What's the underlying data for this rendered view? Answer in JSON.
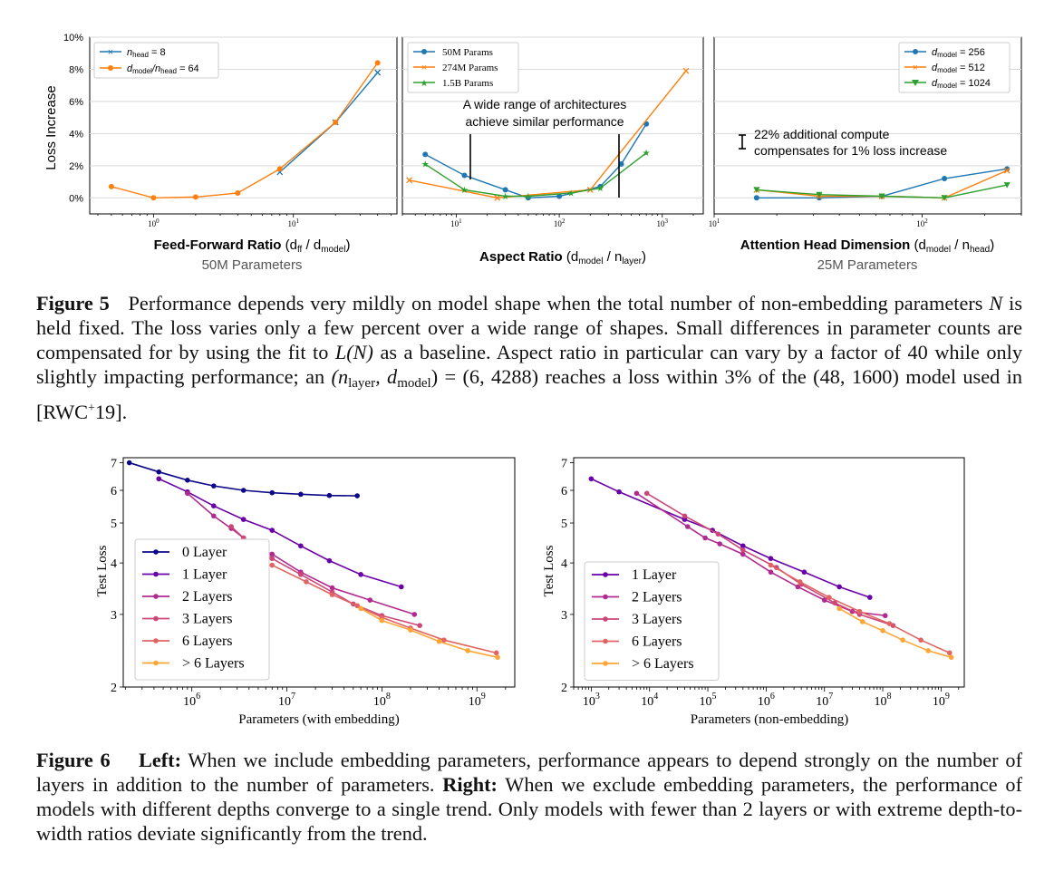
{
  "colors": {
    "blue": "#1f77b4",
    "orange": "#ff7f0e",
    "green": "#2ca02c",
    "depth0": "#0d0887",
    "depth1": "#6a00a8",
    "depth2": "#b12a90",
    "depth3": "#cc4778",
    "depth6": "#e16462",
    "depthMore": "#fca636",
    "grid": "#d9d9d9",
    "axis": "#000000"
  },
  "figure5": {
    "ylabel": "Loss Increase",
    "yticks": [
      "0%",
      "2%",
      "4%",
      "6%",
      "8%",
      "10%"
    ],
    "panel1": {
      "xlabel_bold": "Feed-Forward Ratio",
      "xlabel_rest": "(d",
      "xlabel_sub1": "ff",
      "xlabel_mid": "/ d",
      "xlabel_sub2": "model",
      "xlabel_end": ")",
      "subtitle": "50M Parameters",
      "legend": [
        {
          "pre": "n",
          "sub": "head",
          "post": " = 8"
        },
        {
          "pre": "d",
          "sub": "model",
          "mid": "/n",
          "sub2": "head",
          "post": " = 64"
        }
      ]
    },
    "panel2": {
      "xlabel_bold": "Aspect Ratio",
      "xlabel_rest": "(d",
      "xlabel_sub1": "model",
      "xlabel_mid": "/ n",
      "xlabel_sub2": "layer",
      "xlabel_end": ")",
      "legend": [
        "50M Params",
        "274M Params",
        "1.5B Params"
      ],
      "annotation_line1": "A wide range of architectures",
      "annotation_line2": "achieve similar performance"
    },
    "panel3": {
      "xlabel_bold": "Attention Head Dimension",
      "xlabel_rest": "(d",
      "xlabel_sub1": "model",
      "xlabel_mid": "/ n",
      "xlabel_sub2": "head",
      "xlabel_end": ")",
      "subtitle": "25M Parameters",
      "legend": [
        {
          "pre": "d",
          "sub": "model",
          "post": " = 256"
        },
        {
          "pre": "d",
          "sub": "model",
          "post": " = 512"
        },
        {
          "pre": "d",
          "sub": "model",
          "post": " = 1024"
        }
      ],
      "annotation_line1": "22% additional compute",
      "annotation_line2": "compensates for 1% loss increase"
    },
    "caption": {
      "label": "Figure 5",
      "text1": "Performance depends very mildly on model shape when the total number of non-embedding parameters ",
      "N": "N",
      "text2": " is held fixed. The loss varies only a few percent over a wide range of shapes. Small differences in parameter counts are compensated for by using the fit to ",
      "LN": "L(N)",
      "text3": " as a baseline. Aspect ratio in particular can vary by a factor of 40 while only slightly impacting performance; an ",
      "tuple1": "(n",
      "tuple1_sub": "layer",
      "tuple1_mid": ", d",
      "tuple1_sub2": "model",
      "tuple1_end": ") = (6, 4288)",
      "text4": " reaches a loss within 3% of the ",
      "tuple2": "(48, 1600)",
      "text5": " model used in [RWC",
      "cite_sup": "+",
      "text6": "19]."
    }
  },
  "figure6": {
    "ylabel": "Test Loss",
    "left_xlabel": "Parameters (with embedding)",
    "right_xlabel": "Parameters (non-embedding)",
    "yticks": [
      "2",
      "3",
      "4",
      "5",
      "6",
      "7"
    ],
    "left_legend": [
      "0 Layer",
      "1 Layer",
      "2 Layers",
      "3 Layers",
      "6 Layers",
      "> 6 Layers"
    ],
    "right_legend": [
      "1 Layer",
      "2 Layers",
      "3 Layers",
      "6 Layers",
      "> 6 Layers"
    ],
    "caption": {
      "label": "Figure 6",
      "left_bold": "Left:",
      "text1": " When we include embedding parameters, performance appears to depend strongly on the number of layers in addition to the number of parameters. ",
      "right_bold": "Right:",
      "text2": " When we exclude embedding parameters, the performance of models with different depths converge to a single trend. Only models with fewer than 2 layers or with extreme depth-to-width ratios deviate significantly from the trend."
    }
  },
  "chart_data": [
    {
      "type": "line",
      "title": "Feed-Forward Ratio (dff / dmodel), 50M Parameters",
      "xscale": "log",
      "xlim": [
        0.35,
        55
      ],
      "ylim": [
        -1,
        10
      ],
      "xticks": [
        1,
        10
      ],
      "ylabel": "Loss Increase (%)",
      "series": [
        {
          "name": "n_head = 8",
          "marker": "x",
          "color": "#1f77b4",
          "x": [
            8,
            20,
            40
          ],
          "y": [
            1.6,
            4.7,
            7.8
          ]
        },
        {
          "name": "d_model/n_head = 64",
          "marker": "o",
          "color": "#ff7f0e",
          "x": [
            0.5,
            1,
            2,
            4,
            8,
            20,
            40
          ],
          "y": [
            0.7,
            0.0,
            0.05,
            0.3,
            1.8,
            4.7,
            8.4
          ]
        }
      ]
    },
    {
      "type": "line",
      "title": "Aspect Ratio (dmodel / nlayer)",
      "xscale": "log",
      "xlim": [
        3,
        2500
      ],
      "ylim": [
        -1,
        10
      ],
      "xticks": [
        10,
        100,
        1000
      ],
      "series": [
        {
          "name": "50M Params",
          "marker": "o",
          "color": "#1f77b4",
          "x": [
            5,
            12,
            30,
            50,
            100,
            250,
            400,
            700
          ],
          "y": [
            2.7,
            1.4,
            0.5,
            0.0,
            0.1,
            0.7,
            2.1,
            4.6
          ]
        },
        {
          "name": "274M Params",
          "marker": "x",
          "color": "#ff7f0e",
          "x": [
            3.5,
            25,
            200,
            1700
          ],
          "y": [
            1.1,
            0.0,
            0.5,
            7.9
          ]
        },
        {
          "name": "1.5B Params",
          "marker": "*",
          "color": "#2ca02c",
          "x": [
            5,
            12,
            30,
            50,
            130,
            250,
            700
          ],
          "y": [
            2.1,
            0.5,
            0.1,
            0.1,
            0.3,
            0.6,
            2.8
          ]
        }
      ]
    },
    {
      "type": "line",
      "title": "Attention Head Dimension (dmodel / nhead), 25M Parameters",
      "xscale": "log",
      "xlim": [
        10,
        300
      ],
      "ylim": [
        -1,
        10
      ],
      "xticks": [
        10,
        100
      ],
      "series": [
        {
          "name": "d_model = 256",
          "marker": "o",
          "color": "#1f77b4",
          "x": [
            16,
            32,
            64,
            128,
            256
          ],
          "y": [
            0.0,
            0.0,
            0.1,
            1.2,
            1.8
          ]
        },
        {
          "name": "d_model = 512",
          "marker": "x",
          "color": "#ff7f0e",
          "x": [
            16,
            32,
            64,
            128,
            256
          ],
          "y": [
            0.5,
            0.1,
            0.1,
            0.0,
            1.7
          ]
        },
        {
          "name": "d_model = 1024",
          "marker": "v",
          "color": "#2ca02c",
          "x": [
            16,
            32,
            64,
            128,
            256
          ],
          "y": [
            0.5,
            0.2,
            0.1,
            0.0,
            0.8
          ]
        }
      ]
    },
    {
      "type": "line",
      "title": "Parameters (with embedding)",
      "xscale": "log",
      "yscale": "log",
      "xlim": [
        190000,
        2500000000
      ],
      "ylim": [
        2,
        7.2
      ],
      "ylabel": "Test Loss",
      "series": [
        {
          "name": "0 Layer",
          "color": "#0d0887",
          "x": [
            220000,
            450000,
            900000,
            1700000,
            3500000,
            7000000,
            14000000,
            28000000,
            55000000
          ],
          "y": [
            7.0,
            6.65,
            6.35,
            6.15,
            6.0,
            5.92,
            5.87,
            5.83,
            5.82
          ]
        },
        {
          "name": "1 Layer",
          "color": "#6a00a8",
          "x": [
            450000,
            900000,
            1700000,
            3500000,
            7000000,
            14000000,
            28000000,
            60000000,
            160000000
          ],
          "y": [
            6.4,
            5.95,
            5.5,
            5.1,
            4.8,
            4.4,
            4.05,
            3.75,
            3.5
          ]
        },
        {
          "name": "2 Layers",
          "color": "#b12a90",
          "x": [
            900000,
            1700000,
            2600000,
            3500000,
            5000000,
            7000000,
            14000000,
            30000000,
            75000000,
            220000000
          ],
          "y": [
            5.9,
            5.2,
            4.85,
            4.6,
            4.35,
            4.2,
            3.8,
            3.48,
            3.25,
            3.0
          ]
        },
        {
          "name": "3 Layers",
          "color": "#cc4778",
          "x": [
            2600000,
            3500000,
            5000000,
            7000000,
            14000000,
            30000000,
            50000000,
            100000000,
            250000000
          ],
          "y": [
            4.9,
            4.6,
            4.35,
            4.1,
            3.75,
            3.4,
            3.18,
            2.98,
            2.82
          ]
        },
        {
          "name": "6 Layers",
          "color": "#e16462",
          "x": [
            7000000,
            16000000,
            30000000,
            55000000,
            100000000,
            200000000,
            450000000,
            1600000000
          ],
          "y": [
            3.95,
            3.6,
            3.35,
            3.15,
            2.95,
            2.78,
            2.6,
            2.42
          ]
        },
        {
          "name": "> 6 Layers",
          "color": "#fca636",
          "x": [
            60000000,
            100000000,
            200000000,
            400000000,
            800000000,
            1650000000
          ],
          "y": [
            3.1,
            2.9,
            2.75,
            2.58,
            2.45,
            2.36
          ]
        }
      ]
    },
    {
      "type": "line",
      "title": "Parameters (non-embedding)",
      "xscale": "log",
      "yscale": "log",
      "xlim": [
        500,
        2500000000
      ],
      "ylim": [
        2,
        7.2
      ],
      "ylabel": "Test Loss",
      "series": [
        {
          "name": "1 Layer",
          "color": "#6a00a8",
          "x": [
            1000,
            3000,
            40000,
            120000,
            400000,
            1200000,
            4500000,
            18000000,
            60000000
          ],
          "y": [
            6.4,
            5.95,
            5.1,
            4.8,
            4.4,
            4.1,
            3.8,
            3.5,
            3.3
          ]
        },
        {
          "name": "2 Layers",
          "color": "#b12a90",
          "x": [
            6000,
            45000,
            90000,
            160000,
            400000,
            1200000,
            3500000,
            10000000,
            30000000,
            110000000
          ],
          "y": [
            5.9,
            4.9,
            4.6,
            4.45,
            4.2,
            3.8,
            3.5,
            3.25,
            3.05,
            2.98
          ]
        },
        {
          "name": "3 Layers",
          "color": "#cc4778",
          "x": [
            9000,
            40000,
            150000,
            400000,
            1500000,
            4000000,
            15000000,
            40000000,
            150000000
          ],
          "y": [
            5.9,
            5.2,
            4.7,
            4.3,
            3.9,
            3.55,
            3.2,
            3.0,
            2.82
          ]
        },
        {
          "name": "6 Layers",
          "color": "#e16462",
          "x": [
            1200000,
            3800000,
            12000000,
            40000000,
            130000000,
            450000000,
            1400000000
          ],
          "y": [
            3.95,
            3.6,
            3.3,
            3.05,
            2.85,
            2.6,
            2.42
          ]
        },
        {
          "name": "> 6 Layers",
          "color": "#fca636",
          "x": [
            18000000,
            45000000,
            100000000,
            220000000,
            600000000,
            1500000000
          ],
          "y": [
            3.1,
            2.88,
            2.74,
            2.6,
            2.45,
            2.36
          ]
        }
      ]
    }
  ]
}
